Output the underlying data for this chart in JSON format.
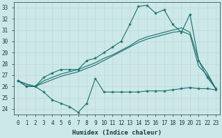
{
  "xlabel": "Humidex (Indice chaleur)",
  "bg_color": "#cce8e8",
  "grid_color": "#c0d8d8",
  "line_color": "#1a6e6e",
  "xlim": [
    -0.5,
    23.5
  ],
  "ylim": [
    23.5,
    33.5
  ],
  "xticks": [
    0,
    1,
    2,
    3,
    4,
    5,
    6,
    7,
    8,
    9,
    10,
    11,
    12,
    13,
    14,
    15,
    16,
    17,
    18,
    19,
    20,
    21,
    22,
    23
  ],
  "yticks": [
    24,
    25,
    26,
    27,
    28,
    29,
    30,
    31,
    32,
    33
  ],
  "series": [
    {
      "x": [
        0,
        1,
        2,
        3,
        4,
        5,
        6,
        7,
        8,
        9,
        10,
        11,
        12,
        13,
        14,
        15,
        16,
        17,
        18,
        19,
        20,
        21,
        22,
        23
      ],
      "y": [
        26.5,
        26.0,
        26.0,
        25.5,
        24.8,
        24.5,
        24.2,
        23.7,
        24.5,
        26.7,
        25.5,
        25.5,
        25.5,
        25.5,
        25.5,
        25.6,
        25.6,
        25.6,
        25.7,
        25.8,
        25.9,
        25.8,
        25.8,
        25.7
      ],
      "marker": true
    },
    {
      "x": [
        0,
        1,
        2,
        3,
        4,
        5,
        6,
        7,
        8,
        9,
        10,
        11,
        12,
        13,
        14,
        15,
        16,
        17,
        18,
        19,
        20,
        21,
        22,
        23
      ],
      "y": [
        26.5,
        26.0,
        26.0,
        26.8,
        27.2,
        27.5,
        27.5,
        27.5,
        28.3,
        28.5,
        29.0,
        29.5,
        30.0,
        31.5,
        33.1,
        33.2,
        32.5,
        32.8,
        31.5,
        30.8,
        32.4,
        28.3,
        26.8,
        25.8
      ],
      "marker": true
    },
    {
      "x": [
        0,
        1,
        2,
        3,
        4,
        5,
        6,
        7,
        8,
        9,
        10,
        11,
        12,
        13,
        14,
        15,
        16,
        17,
        18,
        19,
        20,
        21,
        22,
        23
      ],
      "y": [
        26.5,
        26.2,
        26.0,
        26.5,
        26.8,
        27.1,
        27.3,
        27.5,
        27.8,
        28.1,
        28.5,
        28.8,
        29.2,
        29.6,
        30.1,
        30.4,
        30.6,
        30.8,
        31.0,
        31.2,
        30.8,
        28.3,
        27.2,
        25.8
      ],
      "marker": false
    },
    {
      "x": [
        0,
        1,
        2,
        3,
        4,
        5,
        6,
        7,
        8,
        9,
        10,
        11,
        12,
        13,
        14,
        15,
        16,
        17,
        18,
        19,
        20,
        21,
        22,
        23
      ],
      "y": [
        26.5,
        26.2,
        26.0,
        26.3,
        26.6,
        26.9,
        27.1,
        27.3,
        27.6,
        27.9,
        28.3,
        28.7,
        29.1,
        29.5,
        29.9,
        30.2,
        30.4,
        30.6,
        30.8,
        30.9,
        30.6,
        27.8,
        27.0,
        25.8
      ],
      "marker": false
    }
  ]
}
